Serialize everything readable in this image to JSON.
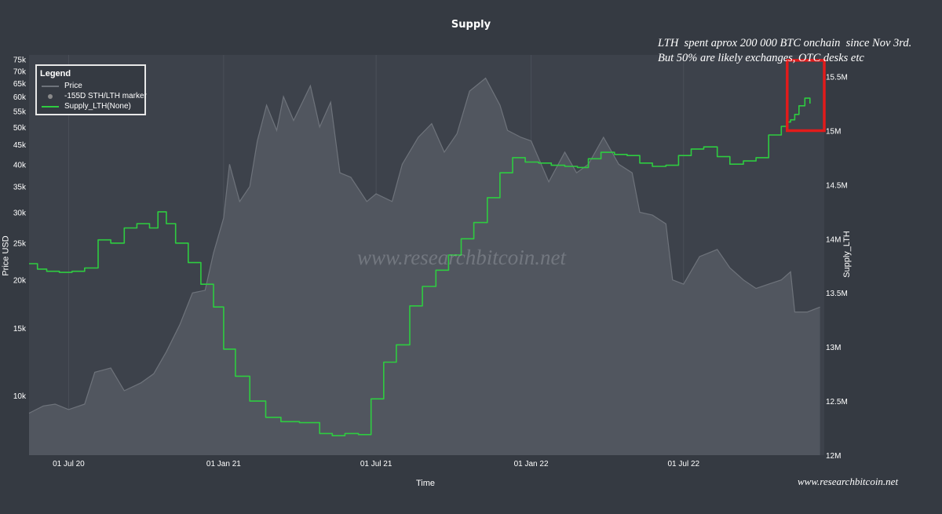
{
  "chart_data": {
    "type": "line",
    "title": "Supply",
    "xlabel": "Time",
    "ylabel_left": "Price USD",
    "ylabel_right": "Supply_LTH",
    "x_tick_labels": [
      "01 Jul 20",
      "01 Jan 21",
      "01 Jul 21",
      "01 Jan 22",
      "01 Jul 22"
    ],
    "x_ticks": [
      "2020-07-01",
      "2021-01-01",
      "2021-07-01",
      "2022-01-01",
      "2022-07-01"
    ],
    "x_range": [
      "2020-05-15",
      "2022-12-15"
    ],
    "y_left_scale": "log",
    "y_left_range": [
      7000,
      77000
    ],
    "y_left_ticks": [
      10000,
      15000,
      20000,
      25000,
      30000,
      35000,
      40000,
      45000,
      50000,
      55000,
      60000,
      65000,
      70000,
      75000
    ],
    "y_left_tick_labels": [
      "10k",
      "15k",
      "20k",
      "25k",
      "30k",
      "35k",
      "40k",
      "45k",
      "50k",
      "55k",
      "60k",
      "65k",
      "70k",
      "75k"
    ],
    "y_right_range": [
      12000000,
      15700000
    ],
    "y_right_ticks": [
      12000000,
      12500000,
      13000000,
      13500000,
      14000000,
      14500000,
      15000000,
      15500000
    ],
    "y_right_tick_labels": [
      "12M",
      "12.5M",
      "13M",
      "13.5M",
      "14M",
      "14.5M",
      "15M",
      "15.5M"
    ],
    "grid": "vertical",
    "legend_position": "top-left",
    "legend": {
      "title": "Legend",
      "items": [
        "Price",
        "-155D STH/LTH marker",
        "Supply_LTH(None)"
      ]
    },
    "series": [
      {
        "name": "Price",
        "axis": "left",
        "color": "#6e737b",
        "fill": true,
        "x": [
          "2020-05-15",
          "2020-06-01",
          "2020-06-15",
          "2020-07-01",
          "2020-07-20",
          "2020-08-01",
          "2020-08-20",
          "2020-09-05",
          "2020-09-25",
          "2020-10-10",
          "2020-10-25",
          "2020-11-10",
          "2020-11-25",
          "2020-12-10",
          "2020-12-20",
          "2021-01-01",
          "2021-01-08",
          "2021-01-20",
          "2021-02-01",
          "2021-02-10",
          "2021-02-21",
          "2021-03-05",
          "2021-03-13",
          "2021-03-25",
          "2021-04-14",
          "2021-04-25",
          "2021-05-08",
          "2021-05-19",
          "2021-06-01",
          "2021-06-20",
          "2021-07-01",
          "2021-07-20",
          "2021-08-01",
          "2021-08-20",
          "2021-09-05",
          "2021-09-20",
          "2021-10-05",
          "2021-10-20",
          "2021-11-08",
          "2021-11-25",
          "2021-12-04",
          "2021-12-20",
          "2022-01-01",
          "2022-01-22",
          "2022-02-10",
          "2022-02-24",
          "2022-03-10",
          "2022-03-28",
          "2022-04-15",
          "2022-05-01",
          "2022-05-10",
          "2022-05-25",
          "2022-06-10",
          "2022-06-18",
          "2022-07-01",
          "2022-07-20",
          "2022-08-10",
          "2022-08-25",
          "2022-09-10",
          "2022-09-25",
          "2022-10-10",
          "2022-10-25",
          "2022-11-05",
          "2022-11-10",
          "2022-11-25",
          "2022-12-10"
        ],
        "y": [
          9000,
          9400,
          9500,
          9200,
          9500,
          11500,
          11800,
          10300,
          10800,
          11400,
          13000,
          15300,
          18500,
          18800,
          23500,
          29000,
          40000,
          32000,
          35000,
          46000,
          57000,
          49000,
          60000,
          52000,
          64000,
          50000,
          58000,
          38000,
          37000,
          32000,
          33500,
          32000,
          40000,
          47000,
          51000,
          43000,
          48000,
          62000,
          67000,
          57000,
          49000,
          47000,
          46000,
          36000,
          43000,
          38000,
          40000,
          47000,
          40000,
          38000,
          30000,
          29500,
          28000,
          20000,
          19500,
          23000,
          24000,
          21500,
          20000,
          19000,
          19500,
          20000,
          21000,
          16500,
          16500,
          17000
        ]
      },
      {
        "name": "Supply_LTH(None)",
        "axis": "right",
        "color": "#2ecc40",
        "x": [
          "2020-05-15",
          "2020-05-25",
          "2020-06-05",
          "2020-06-20",
          "2020-07-05",
          "2020-07-20",
          "2020-08-05",
          "2020-08-20",
          "2020-09-05",
          "2020-09-20",
          "2020-10-05",
          "2020-10-15",
          "2020-10-25",
          "2020-11-05",
          "2020-11-20",
          "2020-12-05",
          "2020-12-20",
          "2021-01-01",
          "2021-01-15",
          "2021-02-01",
          "2021-02-20",
          "2021-03-10",
          "2021-04-01",
          "2021-04-25",
          "2021-05-10",
          "2021-05-25",
          "2021-06-10",
          "2021-06-25",
          "2021-07-10",
          "2021-07-25",
          "2021-08-10",
          "2021-08-25",
          "2021-09-10",
          "2021-09-25",
          "2021-10-10",
          "2021-10-25",
          "2021-11-10",
          "2021-11-25",
          "2021-12-10",
          "2021-12-25",
          "2022-01-10",
          "2022-01-25",
          "2022-02-10",
          "2022-02-25",
          "2022-03-10",
          "2022-03-25",
          "2022-04-10",
          "2022-04-25",
          "2022-05-10",
          "2022-05-25",
          "2022-06-10",
          "2022-06-25",
          "2022-07-10",
          "2022-07-25",
          "2022-08-10",
          "2022-08-25",
          "2022-09-10",
          "2022-09-25",
          "2022-10-10",
          "2022-10-25",
          "2022-11-01",
          "2022-11-05",
          "2022-11-10",
          "2022-11-15",
          "2022-11-22",
          "2022-11-28"
        ],
        "y": [
          13770000,
          13720000,
          13700000,
          13690000,
          13700000,
          13730000,
          13990000,
          13960000,
          14100000,
          14140000,
          14100000,
          14250000,
          14140000,
          13960000,
          13780000,
          13580000,
          13370000,
          12980000,
          12730000,
          12500000,
          12350000,
          12310000,
          12300000,
          12200000,
          12180000,
          12200000,
          12190000,
          12520000,
          12860000,
          13020000,
          13380000,
          13560000,
          13710000,
          13850000,
          14000000,
          14150000,
          14380000,
          14610000,
          14750000,
          14710000,
          14700000,
          14680000,
          14670000,
          14660000,
          14740000,
          14800000,
          14780000,
          14770000,
          14700000,
          14670000,
          14680000,
          14770000,
          14830000,
          14850000,
          14760000,
          14690000,
          14720000,
          14750000,
          14960000,
          15040000,
          15080000,
          15100000,
          15150000,
          15230000,
          15300000,
          15250000
        ]
      }
    ],
    "markers": [
      {
        "name": "-155D STH/LTH marker",
        "color": "#888888"
      }
    ],
    "annotation_lines": [
      "LTH  spent aprox 200 000 BTC onchain  since Nov 3rd.",
      "But 50% are likely exchanges, OTC desks etc"
    ],
    "highlight_box_color": "#e21b1b"
  },
  "watermark": "www.researchbitcoin.net",
  "credit": "www.researchbitcoin.net"
}
